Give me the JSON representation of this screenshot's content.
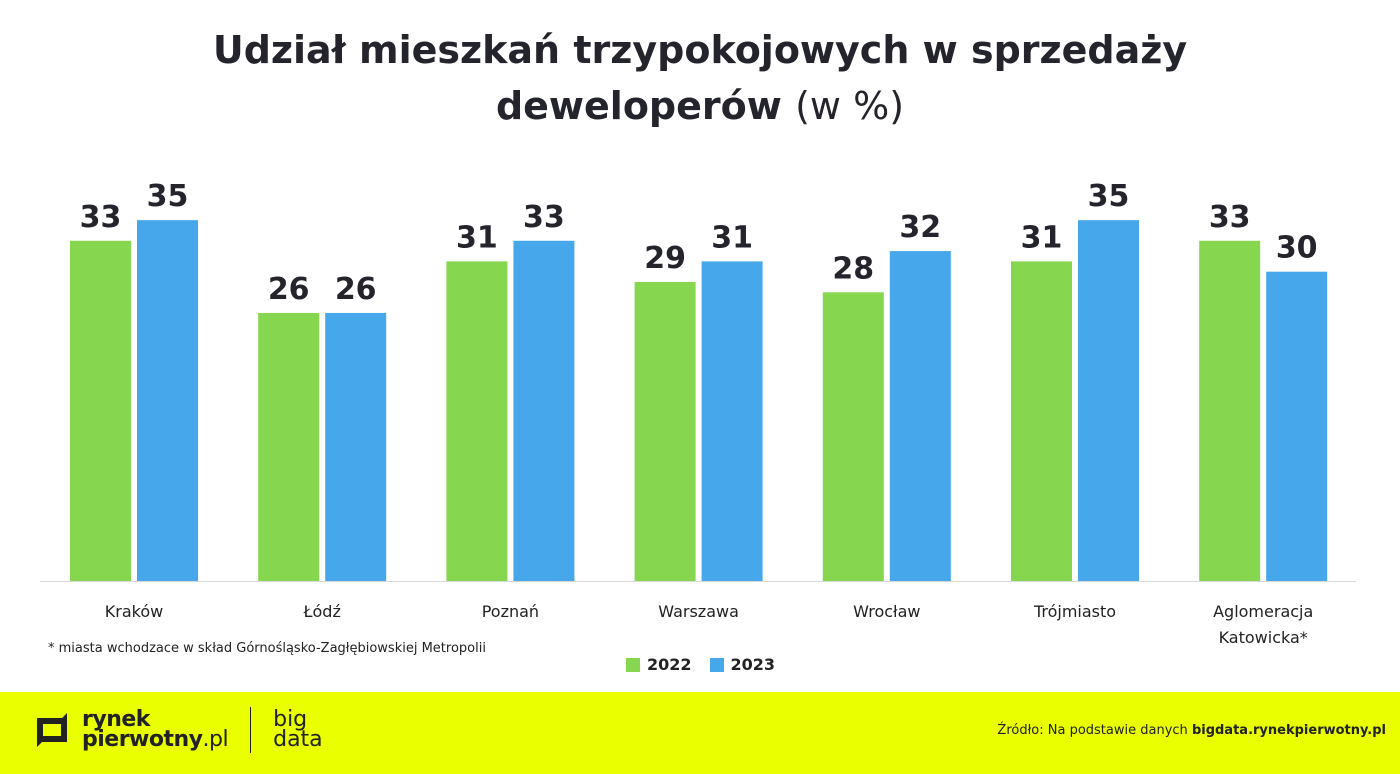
{
  "title": {
    "main_line1": "Udział mieszkań trzypokojowych w sprzedaży",
    "main_line2": "deweloperów",
    "unit": "(w %)"
  },
  "footnote": "* miasta wchodzace w skład Górnośląsko-Zagłębiowskiej Metropolii",
  "footer": {
    "logo_line1": "rynek",
    "logo_line2": "pierwotny",
    "logo_suffix": ".pl",
    "sub_logo_line1": "big",
    "sub_logo_line2": "data",
    "source_prefix": "Źródło: Na podstawie danych",
    "source_site": "bigdata.rynekpierwotny.pl"
  },
  "chart_data": {
    "type": "bar",
    "title": "Udział mieszkań trzypokojowych w sprzedaży deweloperów (w %)",
    "categories": [
      "Kraków",
      "Łódź",
      "Poznań",
      "Warszawa",
      "Wrocław",
      "Trójmiasto",
      "Aglomeracja Katowicka*"
    ],
    "series": [
      {
        "name": "2022",
        "color": "#86d64f",
        "values": [
          33,
          26,
          31,
          29,
          28,
          31,
          33
        ]
      },
      {
        "name": "2023",
        "color": "#46a8ea",
        "values": [
          35,
          26,
          33,
          31,
          32,
          35,
          30
        ]
      }
    ],
    "ylim": [
      0,
      35
    ],
    "grid": false,
    "legend": "bottom-center",
    "data_labels": true
  }
}
